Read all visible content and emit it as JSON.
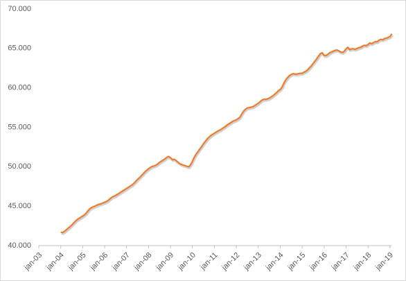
{
  "chart_data": {
    "type": "line",
    "categories": [
      "jan-03",
      null,
      null,
      null,
      null,
      null,
      null,
      null,
      null,
      null,
      null,
      null,
      "jan-04",
      null,
      null,
      null,
      null,
      null,
      null,
      null,
      null,
      null,
      null,
      null,
      "jan-05",
      null,
      null,
      null,
      null,
      null,
      null,
      null,
      null,
      null,
      null,
      null,
      "jan-06",
      null,
      null,
      null,
      null,
      null,
      null,
      null,
      null,
      null,
      null,
      null,
      "jan-07",
      null,
      null,
      null,
      null,
      null,
      null,
      null,
      null,
      null,
      null,
      null,
      "jan-08",
      null,
      null,
      null,
      null,
      null,
      null,
      null,
      null,
      null,
      null,
      null,
      "jan-09",
      null,
      null,
      null,
      null,
      null,
      null,
      null,
      null,
      null,
      null,
      null,
      "jan-10",
      null,
      null,
      null,
      null,
      null,
      null,
      null,
      null,
      null,
      null,
      null,
      "jan-11",
      null,
      null,
      null,
      null,
      null,
      null,
      null,
      null,
      null,
      null,
      null,
      "jan-12",
      null,
      null,
      null,
      null,
      null,
      null,
      null,
      null,
      null,
      null,
      null,
      "jan-13",
      null,
      null,
      null,
      null,
      null,
      null,
      null,
      null,
      null,
      null,
      null,
      "jan-14",
      null,
      null,
      null,
      null,
      null,
      null,
      null,
      null,
      null,
      null,
      null,
      "jan-15",
      null,
      null,
      null,
      null,
      null,
      null,
      null,
      null,
      null,
      null,
      null,
      "jan-16",
      null,
      null,
      null,
      null,
      null,
      null,
      null,
      null,
      null,
      null,
      null,
      "jan-17",
      null,
      null,
      null,
      null,
      null,
      null,
      null,
      null,
      null,
      null,
      null,
      "jan-18",
      null,
      null,
      null,
      null,
      null,
      null,
      null,
      null,
      null,
      null,
      null,
      "jan-19",
      null
    ],
    "values": [
      null,
      null,
      null,
      null,
      null,
      null,
      null,
      null,
      null,
      null,
      null,
      null,
      41700,
      41650,
      41800,
      42000,
      42200,
      42400,
      42600,
      42850,
      43100,
      43300,
      43450,
      43600,
      43750,
      43900,
      44150,
      44450,
      44700,
      44850,
      44950,
      45050,
      45150,
      45250,
      45300,
      45400,
      45500,
      45600,
      45750,
      45950,
      46150,
      46250,
      46350,
      46500,
      46650,
      46800,
      46950,
      47100,
      47250,
      47400,
      47550,
      47700,
      47900,
      48150,
      48400,
      48600,
      48850,
      49100,
      49350,
      49550,
      49750,
      49900,
      50050,
      50100,
      50200,
      50350,
      50550,
      50700,
      50850,
      51000,
      51200,
      51300,
      51150,
      50900,
      50950,
      50800,
      50600,
      50400,
      50300,
      50200,
      50150,
      50050,
      50000,
      50250,
      50700,
      51200,
      51600,
      51900,
      52250,
      52550,
      52900,
      53200,
      53500,
      53750,
      53950,
      54100,
      54250,
      54400,
      54550,
      54650,
      54800,
      54950,
      55100,
      55300,
      55450,
      55600,
      55750,
      55850,
      55950,
      56100,
      56300,
      56700,
      57050,
      57300,
      57450,
      57500,
      57550,
      57600,
      57750,
      57900,
      58050,
      58250,
      58450,
      58550,
      58550,
      58600,
      58700,
      58850,
      59000,
      59200,
      59400,
      59650,
      59800,
      60100,
      60600,
      61000,
      61300,
      61550,
      61700,
      61800,
      61750,
      61750,
      61800,
      61850,
      61850,
      62000,
      62100,
      62300,
      62550,
      62800,
      63100,
      63400,
      63700,
      64050,
      64350,
      64450,
      64100,
      64100,
      64250,
      64450,
      64550,
      64650,
      64750,
      64800,
      64700,
      64550,
      64500,
      64650,
      64950,
      65150,
      64850,
      64950,
      64950,
      64900,
      65000,
      65100,
      65150,
      65300,
      65400,
      65350,
      65500,
      65700,
      65600,
      65750,
      65850,
      65850,
      66050,
      66150,
      66100,
      66250,
      66300,
      66400,
      66500,
      66850
    ],
    "color": "#ed7d31",
    "ylim": [
      40000,
      70000
    ],
    "yticks": [
      {
        "value": 40000,
        "label": "40.000"
      },
      {
        "value": 45000,
        "label": "45.000"
      },
      {
        "value": 50000,
        "label": "50.000"
      },
      {
        "value": 55000,
        "label": "55.000"
      },
      {
        "value": 60000,
        "label": "60.000"
      },
      {
        "value": 65000,
        "label": "65.000"
      },
      {
        "value": 70000,
        "label": "70.000"
      }
    ],
    "grid": false
  }
}
